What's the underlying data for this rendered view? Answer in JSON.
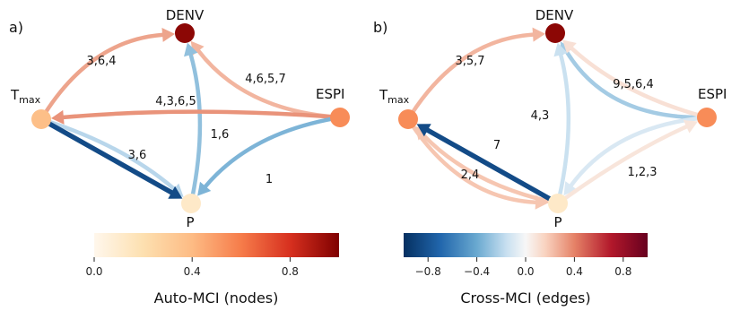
{
  "panels": [
    {
      "label": "a)",
      "nodes": {
        "DENV": {
          "text": "DENV",
          "mci": 0.97
        },
        "Tmax": {
          "text": "T",
          "sub": "max",
          "mci": 0.38
        },
        "ESPI": {
          "text": "ESPI",
          "mci": 0.55
        },
        "P": {
          "text": "P",
          "mci": 0.12
        }
      },
      "edges": [
        {
          "from": "Tmax",
          "to": "DENV",
          "label": "3,6,4",
          "value": 0.3
        },
        {
          "from": "ESPI",
          "to": "DENV",
          "label": "4,6,5,7",
          "value": 0.25
        },
        {
          "from": "P",
          "to": "DENV",
          "label": "4,3,6,5",
          "value": -0.3
        },
        {
          "from": "ESPI",
          "to": "Tmax",
          "label": "1,6",
          "value": 0.35
        },
        {
          "from": "Tmax",
          "to": "P",
          "label": "3,6",
          "value": -0.2
        },
        {
          "from": "Tmax",
          "to": "P",
          "label": "",
          "value": -0.85
        },
        {
          "from": "ESPI",
          "to": "P",
          "label": "1",
          "value": -0.35
        }
      ]
    },
    {
      "label": "b)",
      "nodes": {
        "DENV": {
          "text": "DENV",
          "mci": 0.97
        },
        "Tmax": {
          "text": "T",
          "sub": "max",
          "mci": 0.55
        },
        "ESPI": {
          "text": "ESPI",
          "mci": 0.55
        },
        "P": {
          "text": "P",
          "mci": 0.12
        }
      },
      "edges": [
        {
          "from": "Tmax",
          "to": "DENV",
          "label": "3,5,7",
          "value": 0.25
        },
        {
          "from": "ESPI",
          "to": "DENV",
          "label": "9,5,6,4",
          "value": -0.25
        },
        {
          "from": "ESPI",
          "to": "DENV",
          "label": "",
          "value": 0.1
        },
        {
          "from": "P",
          "to": "DENV",
          "label": "4,3",
          "value": -0.15
        },
        {
          "from": "P",
          "to": "Tmax",
          "label": "7",
          "value": 0.2
        },
        {
          "from": "Tmax",
          "to": "P",
          "label": "2,4",
          "value": 0.2
        },
        {
          "from": "P",
          "to": "Tmax",
          "label": "",
          "value": -0.85
        },
        {
          "from": "ESPI",
          "to": "P",
          "label": "1,2,3",
          "value": -0.1
        },
        {
          "from": "P",
          "to": "ESPI",
          "label": "",
          "value": 0.08
        }
      ]
    }
  ],
  "colorbars": [
    {
      "title": "Auto-MCI (nodes)",
      "ticks": [
        "0.0",
        "0.4",
        "0.8"
      ],
      "tick_values": [
        0,
        0.4,
        0.8
      ],
      "range": [
        0,
        1
      ],
      "cmap": "OrRd"
    },
    {
      "title": "Cross-MCI (edges)",
      "ticks": [
        "−0.8",
        "−0.4",
        "0.0",
        "0.4",
        "0.8"
      ],
      "tick_values": [
        -0.8,
        -0.4,
        0,
        0.4,
        0.8
      ],
      "range": [
        -1,
        1
      ],
      "cmap": "RdBu_r"
    }
  ]
}
